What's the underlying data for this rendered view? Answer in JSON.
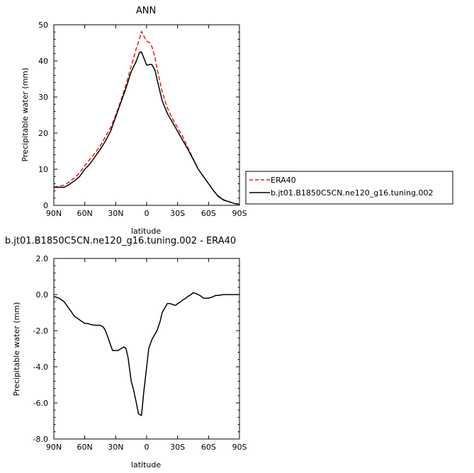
{
  "chart_data": [
    {
      "type": "line",
      "title": "ANN",
      "xlabel": "latitude",
      "ylabel": "Precipitable water (mm)",
      "xlim": [
        90,
        -90
      ],
      "ylim": [
        0,
        50
      ],
      "x_ticks": [
        90,
        60,
        30,
        0,
        -30,
        -60,
        -90
      ],
      "x_tick_labels": [
        "90N",
        "60N",
        "30N",
        "0",
        "30S",
        "60S",
        "90S"
      ],
      "y_ticks": [
        0,
        10,
        20,
        30,
        40,
        50
      ],
      "y_tick_labels": [
        "0",
        "10",
        "20",
        "30",
        "40",
        "50"
      ],
      "legend_position": "right, outside plot",
      "grid": false,
      "series": [
        {
          "name": "ERA40",
          "color": "#e41a1c",
          "dash": "dashed",
          "x": [
            90,
            85,
            80,
            75,
            70,
            65,
            60,
            55,
            50,
            45,
            40,
            35,
            30,
            25,
            20,
            15,
            10,
            7,
            5,
            3,
            0,
            -3,
            -5,
            -8,
            -10,
            -15,
            -20,
            -25,
            -30,
            -35,
            -40,
            -45,
            -50,
            -55,
            -60,
            -65,
            -70,
            -75,
            -80,
            -85,
            -90
          ],
          "values": [
            5.0,
            5.3,
            5.6,
            6.5,
            7.6,
            9.0,
            11.0,
            12.8,
            14.5,
            16.5,
            19.0,
            21.5,
            25.0,
            29.0,
            33.5,
            38.5,
            43.5,
            46.0,
            48.2,
            47.0,
            45.5,
            45.0,
            44.0,
            41.0,
            38.0,
            31.5,
            27.0,
            24.0,
            21.5,
            19.0,
            16.0,
            13.0,
            10.0,
            8.0,
            6.0,
            4.0,
            2.5,
            1.5,
            1.0,
            0.5,
            0.3
          ]
        },
        {
          "name": "b.jt01.B1850C5CN.ne120_g16.tuning.002",
          "color": "#000000",
          "dash": "solid",
          "x": [
            90,
            85,
            80,
            75,
            70,
            65,
            60,
            55,
            50,
            45,
            40,
            35,
            30,
            25,
            20,
            15,
            10,
            7,
            5,
            3,
            0,
            -3,
            -5,
            -8,
            -10,
            -15,
            -20,
            -25,
            -30,
            -35,
            -40,
            -45,
            -50,
            -55,
            -60,
            -65,
            -70,
            -75,
            -80,
            -85,
            -90
          ],
          "values": [
            5.0,
            5.0,
            5.0,
            5.8,
            6.8,
            8.0,
            10.0,
            11.5,
            13.5,
            15.5,
            17.8,
            20.5,
            24.5,
            28.5,
            32.5,
            37.0,
            40.0,
            42.3,
            42.5,
            41.0,
            38.8,
            39.0,
            39.0,
            37.5,
            35.0,
            29.0,
            25.5,
            23.0,
            20.5,
            18.0,
            15.5,
            12.8,
            10.0,
            8.0,
            6.0,
            4.0,
            2.3,
            1.4,
            1.0,
            0.5,
            0.3
          ]
        }
      ]
    },
    {
      "type": "line",
      "title": "b.jt01.B1850C5CN.ne120_g16.tuning.002  -  ERA40",
      "xlabel": "latitude",
      "ylabel": "Precipitable water (mm)",
      "xlim": [
        90,
        -90
      ],
      "ylim": [
        -8.0,
        2.0
      ],
      "x_ticks": [
        90,
        60,
        30,
        0,
        -30,
        -60,
        -90
      ],
      "x_tick_labels": [
        "90N",
        "60N",
        "30N",
        "0",
        "30S",
        "60S",
        "90S"
      ],
      "y_ticks": [
        2.0,
        0.0,
        -2.0,
        -4.0,
        -6.0,
        -8.0
      ],
      "y_tick_labels": [
        "2.0",
        "0.0",
        "-2.0",
        "-4.0",
        "-6.0",
        "-8.0"
      ],
      "grid": false,
      "series": [
        {
          "color": "#000000",
          "dash": "solid",
          "x": [
            90,
            85,
            80,
            75,
            70,
            65,
            60,
            57,
            55,
            50,
            45,
            42,
            40,
            38,
            35,
            33,
            30,
            28,
            25,
            22,
            20,
            18,
            15,
            13,
            10,
            8,
            5,
            3,
            0,
            -2,
            -5,
            -7,
            -10,
            -13,
            -15,
            -18,
            -20,
            -23,
            -25,
            -28,
            -30,
            -33,
            -35,
            -38,
            -40,
            -43,
            -45,
            -48,
            -50,
            -53,
            -55,
            -58,
            -60,
            -63,
            -65,
            -67,
            -70,
            -72,
            -75,
            -78,
            -80,
            -83,
            -85,
            -90
          ],
          "values": [
            -0.1,
            -0.2,
            -0.4,
            -0.8,
            -1.2,
            -1.4,
            -1.6,
            -1.6,
            -1.65,
            -1.7,
            -1.7,
            -1.8,
            -2.0,
            -2.3,
            -2.8,
            -3.1,
            -3.1,
            -3.1,
            -3.0,
            -2.9,
            -3.0,
            -3.5,
            -4.8,
            -5.2,
            -6.0,
            -6.6,
            -6.7,
            -5.5,
            -4.0,
            -3.0,
            -2.5,
            -2.3,
            -2.0,
            -1.5,
            -1.0,
            -0.7,
            -0.5,
            -0.5,
            -0.55,
            -0.6,
            -0.5,
            -0.4,
            -0.3,
            -0.2,
            -0.1,
            0.0,
            0.1,
            0.05,
            0.0,
            -0.1,
            -0.2,
            -0.2,
            -0.2,
            -0.15,
            -0.1,
            -0.05,
            -0.05,
            -0.02,
            0.0,
            0.0,
            0.0,
            0.0,
            0.0,
            0.0
          ]
        }
      ]
    }
  ]
}
